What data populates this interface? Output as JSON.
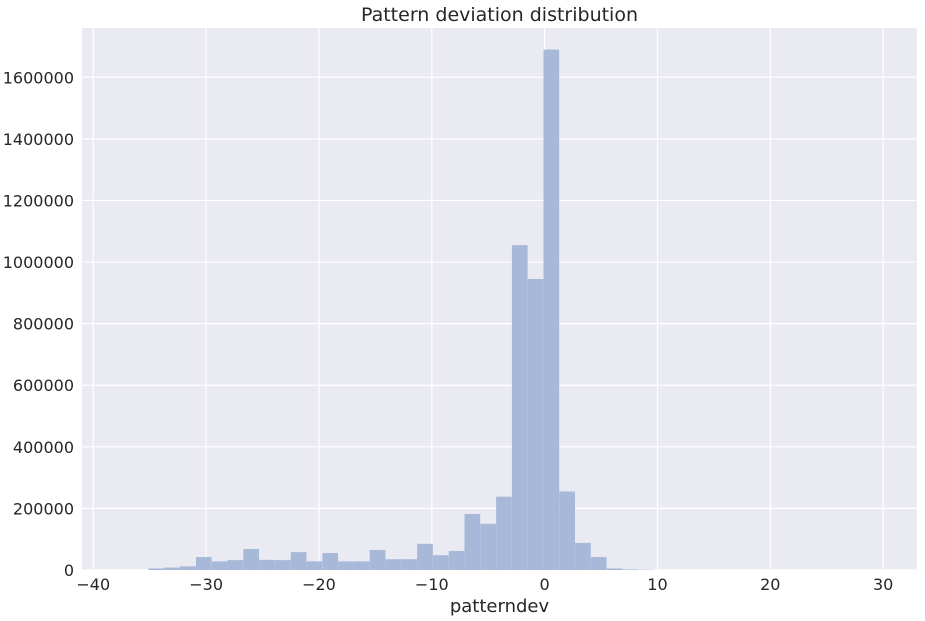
{
  "chart_data": {
    "type": "bar",
    "title": "Pattern deviation distribution",
    "xlabel": "patterndev",
    "ylabel": "",
    "xlim": [
      -41,
      33
    ],
    "ylim": [
      0,
      1760000
    ],
    "xticks": [
      -40,
      -30,
      -20,
      -10,
      0,
      10,
      20,
      30
    ],
    "yticks": [
      0,
      200000,
      400000,
      600000,
      800000,
      1000000,
      1200000,
      1400000,
      1600000
    ],
    "grid": true,
    "bin_width": 1.39,
    "bins": [
      {
        "x0": -35.1,
        "count": 5000
      },
      {
        "x0": -33.7,
        "count": 8000
      },
      {
        "x0": -32.3,
        "count": 12000
      },
      {
        "x0": -30.9,
        "count": 42000
      },
      {
        "x0": -29.5,
        "count": 28000
      },
      {
        "x0": -28.1,
        "count": 32000
      },
      {
        "x0": -26.7,
        "count": 68000
      },
      {
        "x0": -25.3,
        "count": 33000
      },
      {
        "x0": -23.9,
        "count": 32000
      },
      {
        "x0": -22.5,
        "count": 58000
      },
      {
        "x0": -21.1,
        "count": 28000
      },
      {
        "x0": -19.7,
        "count": 55000
      },
      {
        "x0": -18.3,
        "count": 28000
      },
      {
        "x0": -16.9,
        "count": 28000
      },
      {
        "x0": -15.5,
        "count": 65000
      },
      {
        "x0": -14.1,
        "count": 35000
      },
      {
        "x0": -12.7,
        "count": 35000
      },
      {
        "x0": -11.3,
        "count": 85000
      },
      {
        "x0": -9.9,
        "count": 48000
      },
      {
        "x0": -8.5,
        "count": 62000
      },
      {
        "x0": -7.1,
        "count": 182000
      },
      {
        "x0": -5.7,
        "count": 150000
      },
      {
        "x0": -4.3,
        "count": 238000
      },
      {
        "x0": -2.9,
        "count": 1055000
      },
      {
        "x0": -1.5,
        "count": 945000
      },
      {
        "x0": -0.1,
        "count": 1690000
      },
      {
        "x0": 1.3,
        "count": 255000
      },
      {
        "x0": 2.7,
        "count": 88000
      },
      {
        "x0": 4.1,
        "count": 42000
      },
      {
        "x0": 5.5,
        "count": 5000
      },
      {
        "x0": 6.9,
        "count": 2000
      },
      {
        "x0": 8.3,
        "count": 1000
      }
    ],
    "colors": {
      "background": "#eaeaf2",
      "grid": "#ffffff",
      "bar": "#a8b8d8",
      "text": "#262626"
    }
  }
}
